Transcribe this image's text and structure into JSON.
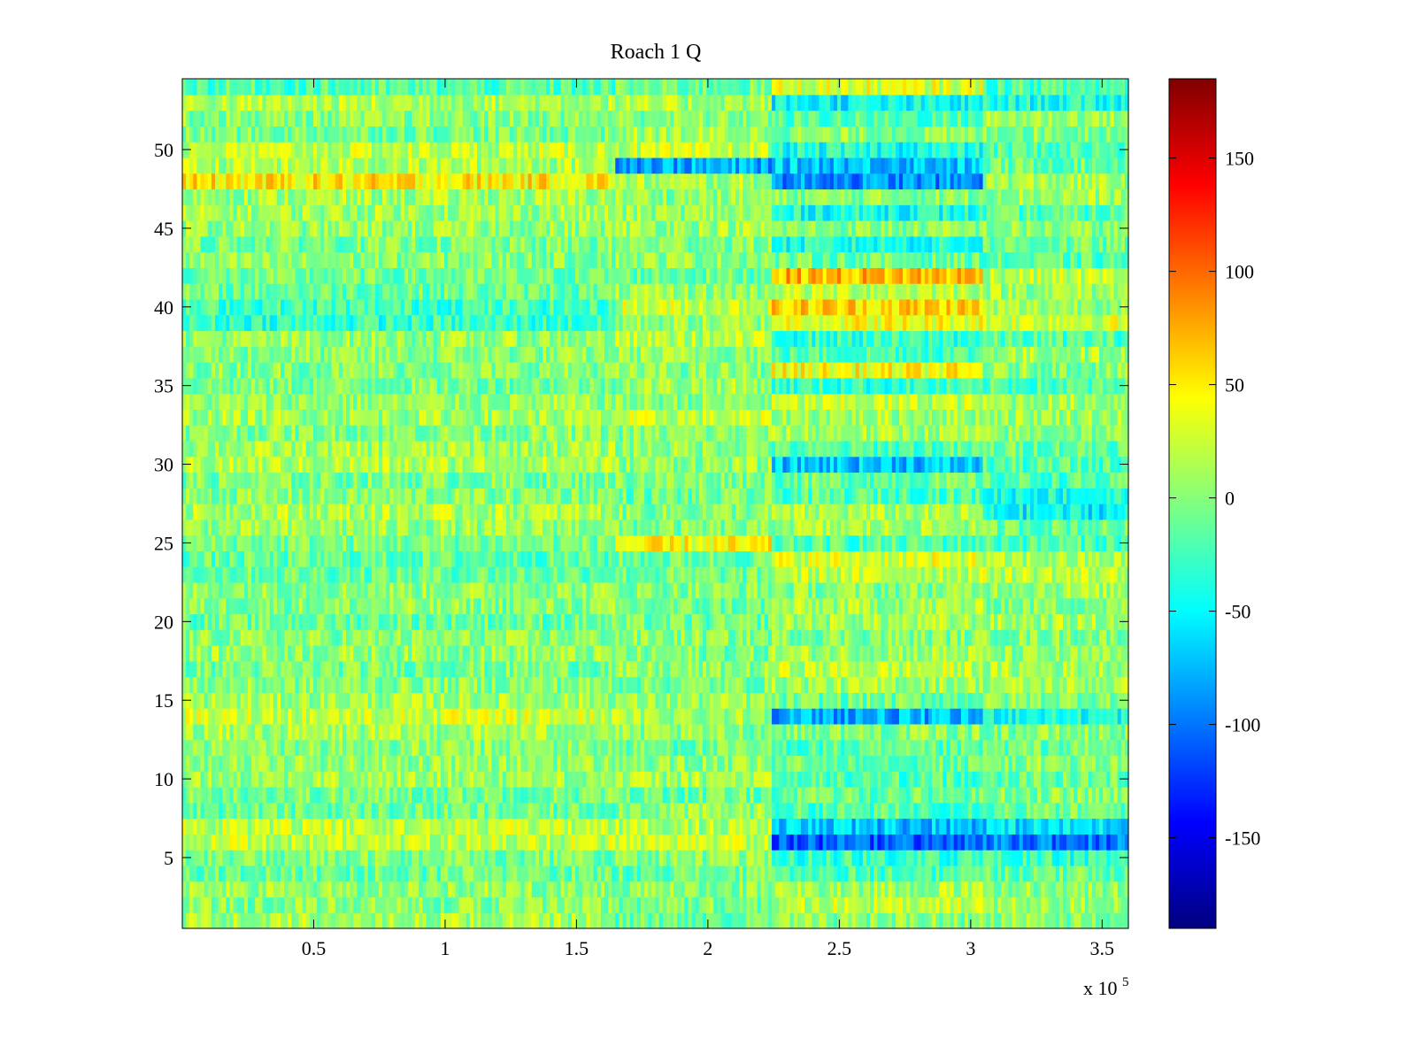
{
  "chart_data": {
    "type": "heatmap",
    "title": "Roach 1 Q",
    "xlabel": "",
    "ylabel": "",
    "x_multiplier_label": "x 10",
    "x_multiplier_exponent": "5",
    "xlim": [
      0,
      3.6
    ],
    "ylim": [
      0.5,
      54.5
    ],
    "x_ticks": [
      0.5,
      1,
      1.5,
      2,
      2.5,
      3,
      3.5
    ],
    "x_tick_labels": [
      "0.5",
      "1",
      "1.5",
      "2",
      "2.5",
      "3",
      "3.5"
    ],
    "y_ticks": [
      5,
      10,
      15,
      20,
      25,
      30,
      35,
      40,
      45,
      50
    ],
    "y_tick_labels": [
      "5",
      "10",
      "15",
      "20",
      "25",
      "30",
      "35",
      "40",
      "45",
      "50"
    ],
    "colormap": "jet",
    "clim": [
      -190,
      185
    ],
    "colorbar_ticks": [
      -150,
      -100,
      -50,
      0,
      50,
      100,
      150
    ],
    "colorbar_tick_labels": [
      "-150",
      "-100",
      "-50",
      "0",
      "50",
      "100",
      "150"
    ],
    "rows": 54,
    "segment_boundaries_x": [
      0,
      1.65,
      2.24,
      3.05,
      3.6
    ],
    "row_segment_means": [
      [
        10,
        -10,
        0,
        0
      ],
      [
        0,
        -5,
        20,
        10
      ],
      [
        5,
        0,
        10,
        5
      ],
      [
        -10,
        -10,
        -20,
        -10
      ],
      [
        -5,
        0,
        -30,
        -30
      ],
      [
        20,
        20,
        -110,
        -100
      ],
      [
        20,
        15,
        -70,
        -60
      ],
      [
        -10,
        5,
        -20,
        -10
      ],
      [
        -5,
        -10,
        -10,
        0
      ],
      [
        10,
        10,
        -20,
        -10
      ],
      [
        5,
        0,
        -10,
        0
      ],
      [
        0,
        -10,
        -20,
        -10
      ],
      [
        10,
        0,
        0,
        0
      ],
      [
        25,
        10,
        -80,
        -40
      ],
      [
        10,
        5,
        -10,
        0
      ],
      [
        0,
        -5,
        10,
        10
      ],
      [
        -5,
        0,
        20,
        10
      ],
      [
        5,
        -5,
        10,
        0
      ],
      [
        0,
        0,
        0,
        0
      ],
      [
        -10,
        -10,
        10,
        10
      ],
      [
        0,
        -10,
        10,
        0
      ],
      [
        5,
        0,
        0,
        10
      ],
      [
        -10,
        -10,
        20,
        20
      ],
      [
        -15,
        -10,
        30,
        10
      ],
      [
        -5,
        40,
        -20,
        -20
      ],
      [
        5,
        -5,
        10,
        -10
      ],
      [
        15,
        0,
        10,
        -50
      ],
      [
        0,
        -10,
        -20,
        -40
      ],
      [
        -5,
        0,
        -10,
        -20
      ],
      [
        15,
        5,
        -70,
        -20
      ],
      [
        10,
        5,
        -20,
        -10
      ],
      [
        0,
        0,
        10,
        0
      ],
      [
        10,
        20,
        10,
        10
      ],
      [
        5,
        0,
        20,
        10
      ],
      [
        -5,
        10,
        -30,
        -20
      ],
      [
        0,
        0,
        40,
        0
      ],
      [
        0,
        5,
        -20,
        10
      ],
      [
        5,
        15,
        -30,
        -20
      ],
      [
        -30,
        5,
        40,
        30
      ],
      [
        -25,
        25,
        60,
        10
      ],
      [
        -10,
        5,
        20,
        10
      ],
      [
        -10,
        -10,
        70,
        20
      ],
      [
        0,
        5,
        -10,
        -20
      ],
      [
        -5,
        0,
        -40,
        -10
      ],
      [
        5,
        10,
        0,
        0
      ],
      [
        10,
        5,
        -40,
        -20
      ],
      [
        10,
        5,
        0,
        10
      ],
      [
        50,
        10,
        -90,
        10
      ],
      [
        15,
        -80,
        -70,
        -10
      ],
      [
        20,
        20,
        -40,
        -20
      ],
      [
        -5,
        10,
        0,
        0
      ],
      [
        0,
        0,
        -20,
        10
      ],
      [
        15,
        10,
        -50,
        -40
      ],
      [
        -20,
        -10,
        30,
        -20
      ]
    ]
  }
}
